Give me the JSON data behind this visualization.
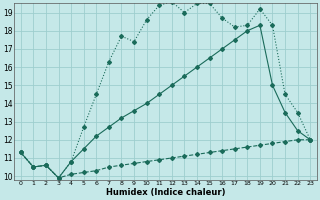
{
  "xlabel": "Humidex (Indice chaleur)",
  "bg_color": "#c5e8e8",
  "grid_color": "#9ecece",
  "line_color": "#1a6b5a",
  "xlim": [
    -0.5,
    23.5
  ],
  "ylim": [
    9.8,
    19.5
  ],
  "xticks": [
    0,
    1,
    2,
    3,
    4,
    5,
    6,
    7,
    8,
    9,
    10,
    11,
    12,
    13,
    14,
    15,
    16,
    17,
    18,
    19,
    20,
    21,
    22,
    23
  ],
  "yticks": [
    10,
    11,
    12,
    13,
    14,
    15,
    16,
    17,
    18,
    19
  ],
  "line1_x": [
    0,
    1,
    2,
    3,
    4,
    5,
    6,
    7,
    8,
    9,
    10,
    11,
    12,
    13,
    14,
    15,
    16,
    17,
    18,
    19,
    20,
    21,
    22,
    23
  ],
  "line1_y": [
    11.3,
    10.5,
    10.6,
    9.9,
    10.1,
    10.2,
    10.3,
    10.5,
    10.6,
    10.7,
    10.8,
    10.9,
    11.0,
    11.1,
    11.2,
    11.3,
    11.4,
    11.5,
    11.6,
    11.7,
    11.8,
    11.9,
    12.0,
    12.0
  ],
  "line2_x": [
    0,
    1,
    2,
    3,
    4,
    5,
    6,
    7,
    8,
    9,
    10,
    11,
    12,
    13,
    14,
    15,
    16,
    17,
    18,
    19,
    20,
    21,
    22,
    23
  ],
  "line2_y": [
    11.3,
    10.5,
    10.6,
    9.9,
    10.8,
    11.5,
    12.2,
    12.7,
    13.2,
    13.6,
    14.0,
    14.5,
    15.0,
    15.5,
    16.0,
    16.5,
    17.0,
    17.5,
    18.0,
    18.3,
    15.0,
    13.5,
    12.5,
    12.0
  ],
  "line3_x": [
    0,
    1,
    2,
    3,
    4,
    5,
    6,
    7,
    8,
    9,
    10,
    11,
    12,
    13,
    14,
    15,
    16,
    17,
    18,
    19,
    20,
    21,
    22,
    23
  ],
  "line3_y": [
    11.3,
    10.5,
    10.6,
    9.9,
    10.8,
    12.7,
    14.5,
    16.3,
    17.7,
    17.4,
    18.6,
    19.4,
    19.6,
    19.0,
    19.5,
    19.5,
    18.7,
    18.2,
    18.3,
    19.2,
    18.3,
    14.5,
    13.5,
    12.0
  ],
  "markersize": 2.0,
  "linewidth": 0.8
}
